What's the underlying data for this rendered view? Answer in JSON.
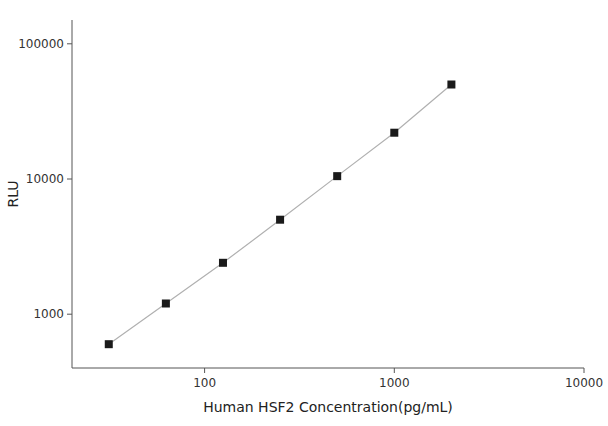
{
  "chart_data": {
    "type": "line",
    "x": [
      31.25,
      62.5,
      125,
      250,
      500,
      1000,
      2000
    ],
    "series": [
      {
        "type": "line",
        "color": "#b0b0b0",
        "line_style": "solid",
        "values": [
          600,
          1200,
          2400,
          5000,
          10500,
          22000,
          50000
        ]
      },
      {
        "type": "scatter",
        "color": "#1a1a1a",
        "marker": "square",
        "values": [
          600,
          1200,
          2400,
          5000,
          10500,
          22000,
          50000
        ]
      }
    ],
    "xlabel": "Human HSF2 Concentration(pg/mL)",
    "ylabel": "RLU",
    "log": true,
    "xlim": [
      20,
      10000
    ],
    "ylim": [
      400,
      150000
    ],
    "xticks": [
      100,
      1000,
      10000
    ],
    "yticks": [
      1000,
      10000,
      100000
    ],
    "grid": false
  }
}
